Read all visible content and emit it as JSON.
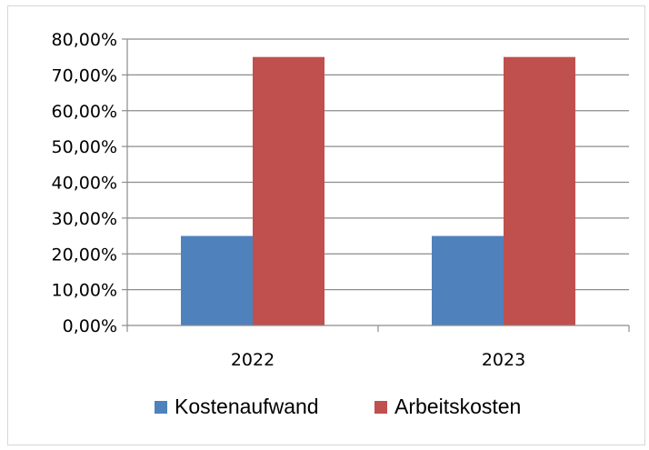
{
  "chart_data": {
    "type": "bar",
    "title": "",
    "xlabel": "",
    "ylabel": "",
    "categories": [
      "2022",
      "2023"
    ],
    "series": [
      {
        "name": "Kostenaufwand",
        "color": "#4f81bd",
        "values": [
          25.0,
          25.0
        ]
      },
      {
        "name": "Arbeitskosten",
        "color": "#c0504d",
        "values": [
          75.0,
          75.0
        ]
      }
    ],
    "ylim": [
      0,
      80
    ],
    "y_ticks": [
      0,
      10,
      20,
      30,
      40,
      50,
      60,
      70,
      80
    ],
    "y_tick_labels": [
      "0,00%",
      "10,00%",
      "20,00%",
      "30,00%",
      "40,00%",
      "50,00%",
      "60,00%",
      "70,00%",
      "80,00%"
    ],
    "grid": true,
    "legend_position": "bottom",
    "colors": {
      "gridline": "#8c8c8c",
      "axis": "#8c8c8c",
      "frame_border": "#d6d6d6"
    }
  }
}
